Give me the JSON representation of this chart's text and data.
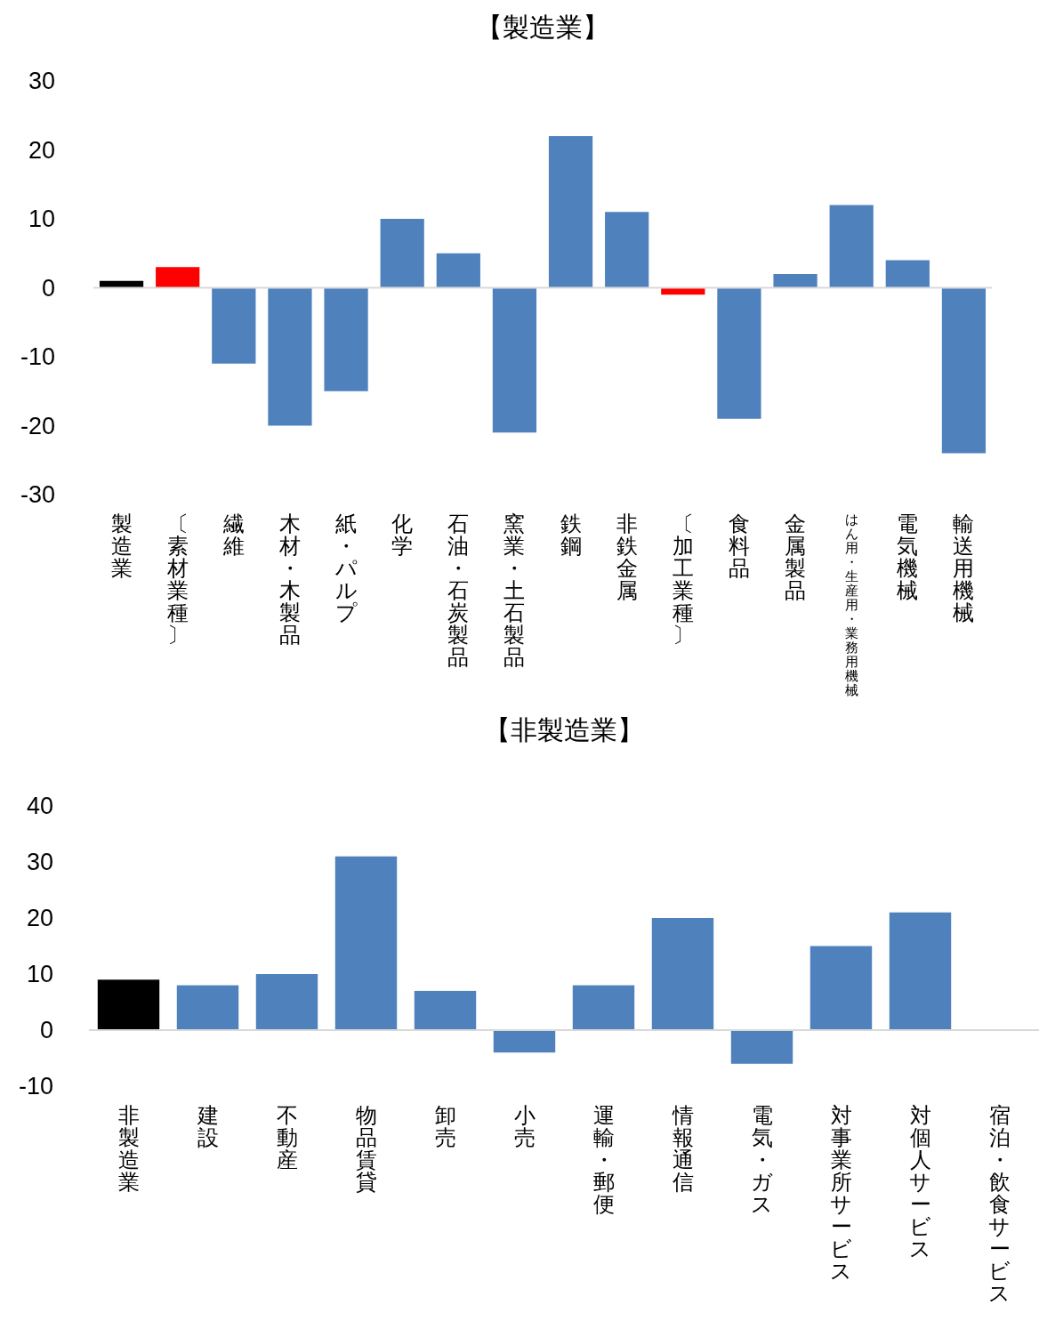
{
  "chart_data": [
    {
      "type": "bar",
      "title": "【製造業】",
      "categories": [
        "製造業",
        "〔素材業種〕",
        "繊維",
        "木材・木製品",
        "紙・パルプ",
        "化学",
        "石油・石炭製品",
        "窯業・土石製品",
        "鉄鋼",
        "非鉄金属",
        "〔加工業種〕",
        "食料品",
        "金属製品",
        "はん用・生産用・業務用機械",
        "電気機械",
        "輸送用機械"
      ],
      "values": [
        1,
        3,
        -11,
        -20,
        -15,
        10,
        5,
        -21,
        22,
        11,
        -1,
        -19,
        2,
        12,
        4,
        -24
      ],
      "colors": [
        "#000000",
        "#ff0000",
        "#4f81bd",
        "#4f81bd",
        "#4f81bd",
        "#4f81bd",
        "#4f81bd",
        "#4f81bd",
        "#4f81bd",
        "#4f81bd",
        "#ff0000",
        "#4f81bd",
        "#4f81bd",
        "#4f81bd",
        "#4f81bd",
        "#4f81bd"
      ],
      "ylim": [
        -30,
        30
      ],
      "yticks": [
        -30,
        -20,
        -10,
        0,
        10,
        20,
        30
      ]
    },
    {
      "type": "bar",
      "title": "【非製造業】",
      "categories": [
        "非製造業",
        "建設",
        "不動産",
        "物品賃貸",
        "卸売",
        "小売",
        "運輸・郵便",
        "情報通信",
        "電気・ガス",
        "対事業所サービス",
        "対個人サービス",
        "宿泊・飲食サービス"
      ],
      "values": [
        9,
        8,
        10,
        31,
        7,
        -4,
        8,
        20,
        -6,
        15,
        21,
        0
      ],
      "colors": [
        "#000000",
        "#4f81bd",
        "#4f81bd",
        "#4f81bd",
        "#4f81bd",
        "#4f81bd",
        "#4f81bd",
        "#4f81bd",
        "#4f81bd",
        "#4f81bd",
        "#4f81bd",
        "#4f81bd"
      ],
      "ylim": [
        -10,
        40
      ],
      "yticks": [
        -10,
        0,
        10,
        20,
        30,
        40
      ]
    }
  ]
}
